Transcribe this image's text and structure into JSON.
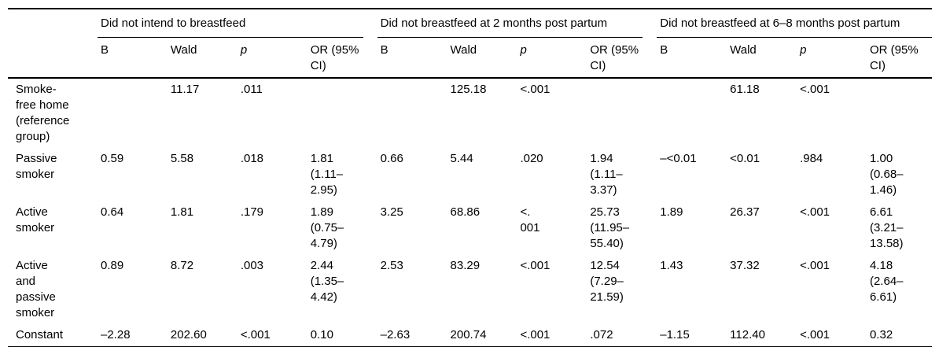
{
  "chart_data": {
    "type": "table",
    "groups": [
      {
        "label": "Did not intend to breastfeed"
      },
      {
        "label": "Did not breastfeed at 2 months post partum"
      },
      {
        "label": "Did not breastfeed at 6–8 months post partum"
      }
    ],
    "sub_columns": [
      "B",
      "Wald",
      "p",
      "OR (95%\nCI)"
    ],
    "rows": [
      {
        "label": "Smoke-\nfree home\n(reference\ngroup)",
        "cells": [
          "",
          "11.17",
          ".011",
          "",
          "",
          "125.18",
          "<.001",
          "",
          "",
          "61.18",
          "<.001",
          ""
        ]
      },
      {
        "label": "Passive\nsmoker",
        "cells": [
          "0.59",
          "5.58",
          ".018",
          "1.81\n(1.11–\n2.95)",
          "0.66",
          "5.44",
          ".020",
          "1.94\n(1.11–\n3.37)",
          "–<0.01",
          "<0.01",
          ".984",
          "1.00\n(0.68–\n1.46)"
        ]
      },
      {
        "label": "Active\nsmoker",
        "cells": [
          "0.64",
          "1.81",
          ".179",
          "1.89\n(0.75–\n4.79)",
          "3.25",
          "68.86",
          "<.\n001",
          "25.73\n(11.95–\n55.40)",
          "1.89",
          "26.37",
          "<.001",
          "6.61\n(3.21–\n13.58)"
        ]
      },
      {
        "label": "Active\nand\npassive\nsmoker",
        "cells": [
          "0.89",
          "8.72",
          ".003",
          "2.44\n(1.35–\n4.42)",
          "2.53",
          "83.29",
          "<.001",
          "12.54\n(7.29–\n21.59)",
          "1.43",
          "37.32",
          "<.001",
          "4.18\n(2.64–\n6.61)"
        ]
      },
      {
        "label": "Constant",
        "cells": [
          "–2.28",
          "202.60",
          "<.001",
          "0.10",
          "–2.63",
          "200.74",
          "<.001",
          ".072",
          "–1.15",
          "112.40",
          "<.001",
          "0.32"
        ]
      }
    ]
  }
}
